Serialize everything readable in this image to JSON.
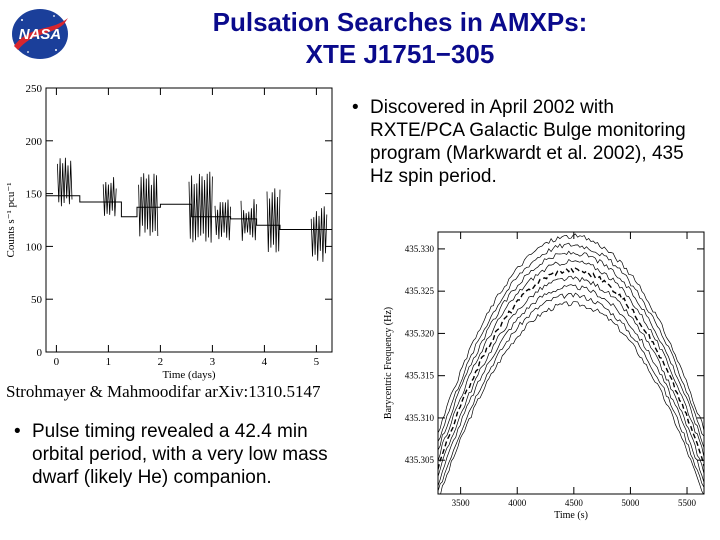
{
  "slide": {
    "title_line1": "Pulsation Searches in AMXPs:",
    "title_line2": "XTE J1751−305",
    "logo_text": "NASA",
    "bullet_marker": "•",
    "bullet1": "Discovered in April 2002 with RXTE/PCA Galactic Bulge monitoring program (Markwardt et al. 2002), 435 Hz spin period.",
    "bullet2": "Pulse timing revealed a 42.4 min orbital period, with a very low mass dwarf (likely He) companion.",
    "citation": "Strohmayer & Mahmoodifar arXiv:1310.5147"
  },
  "chart_data": [
    {
      "type": "line",
      "xlabel": "Time (days)",
      "ylabel": "Counts s⁻¹ pcu⁻¹",
      "xlim": [
        -0.2,
        5.3
      ],
      "ylim": [
        0,
        250
      ],
      "x_ticks": [
        "0",
        "1",
        "2",
        "3",
        "4",
        "5"
      ],
      "y_ticks": [
        "0",
        "50",
        "100",
        "150",
        "200",
        "250"
      ],
      "series": [
        {
          "style": "step",
          "x": [
            -0.2,
            0.45,
            0.45,
            1.25,
            1.25,
            1.55,
            1.55,
            2.0,
            2.0,
            2.6,
            2.6,
            3.35,
            3.35,
            3.85,
            3.85,
            4.3,
            4.3,
            5.3
          ],
          "y": [
            148,
            148,
            142,
            142,
            128,
            128,
            137,
            137,
            140,
            140,
            128,
            128,
            126,
            126,
            120,
            120,
            116,
            116
          ]
        }
      ],
      "bursts": [
        {
          "x_start": 0.02,
          "x_end": 0.3,
          "low": 135,
          "high": 185
        },
        {
          "x_start": 0.9,
          "x_end": 1.15,
          "low": 128,
          "high": 168
        },
        {
          "x_start": 1.58,
          "x_end": 1.95,
          "low": 108,
          "high": 172
        },
        {
          "x_start": 2.55,
          "x_end": 3.0,
          "low": 103,
          "high": 172
        },
        {
          "x_start": 3.05,
          "x_end": 3.35,
          "low": 103,
          "high": 148
        },
        {
          "x_start": 3.55,
          "x_end": 3.85,
          "low": 102,
          "high": 145
        },
        {
          "x_start": 4.05,
          "x_end": 4.3,
          "low": 90,
          "high": 155
        },
        {
          "x_start": 4.9,
          "x_end": 5.2,
          "low": 85,
          "high": 140
        }
      ],
      "grid": false
    },
    {
      "type": "line",
      "xlabel": "Time (s)",
      "ylabel": "Barycentric Frequency (Hz)",
      "xlim": [
        3300,
        5650
      ],
      "ylim": [
        435.301,
        435.332
      ],
      "x_ticks": [
        "3500",
        "4000",
        "4500",
        "5000",
        "5500"
      ],
      "y_ticks": [
        "435.305",
        "435.310",
        "435.315",
        "435.320",
        "435.325",
        "435.330"
      ],
      "curve_center_x": 4480,
      "curve_peak_y": 435.3275,
      "curve_halfwidth": 1120,
      "curve_drop": 0.021,
      "curve_offsets": [
        -0.004,
        -0.003,
        -0.002,
        -0.001,
        0,
        0.001,
        0.002,
        0.003,
        0.004
      ],
      "grid": false
    }
  ]
}
